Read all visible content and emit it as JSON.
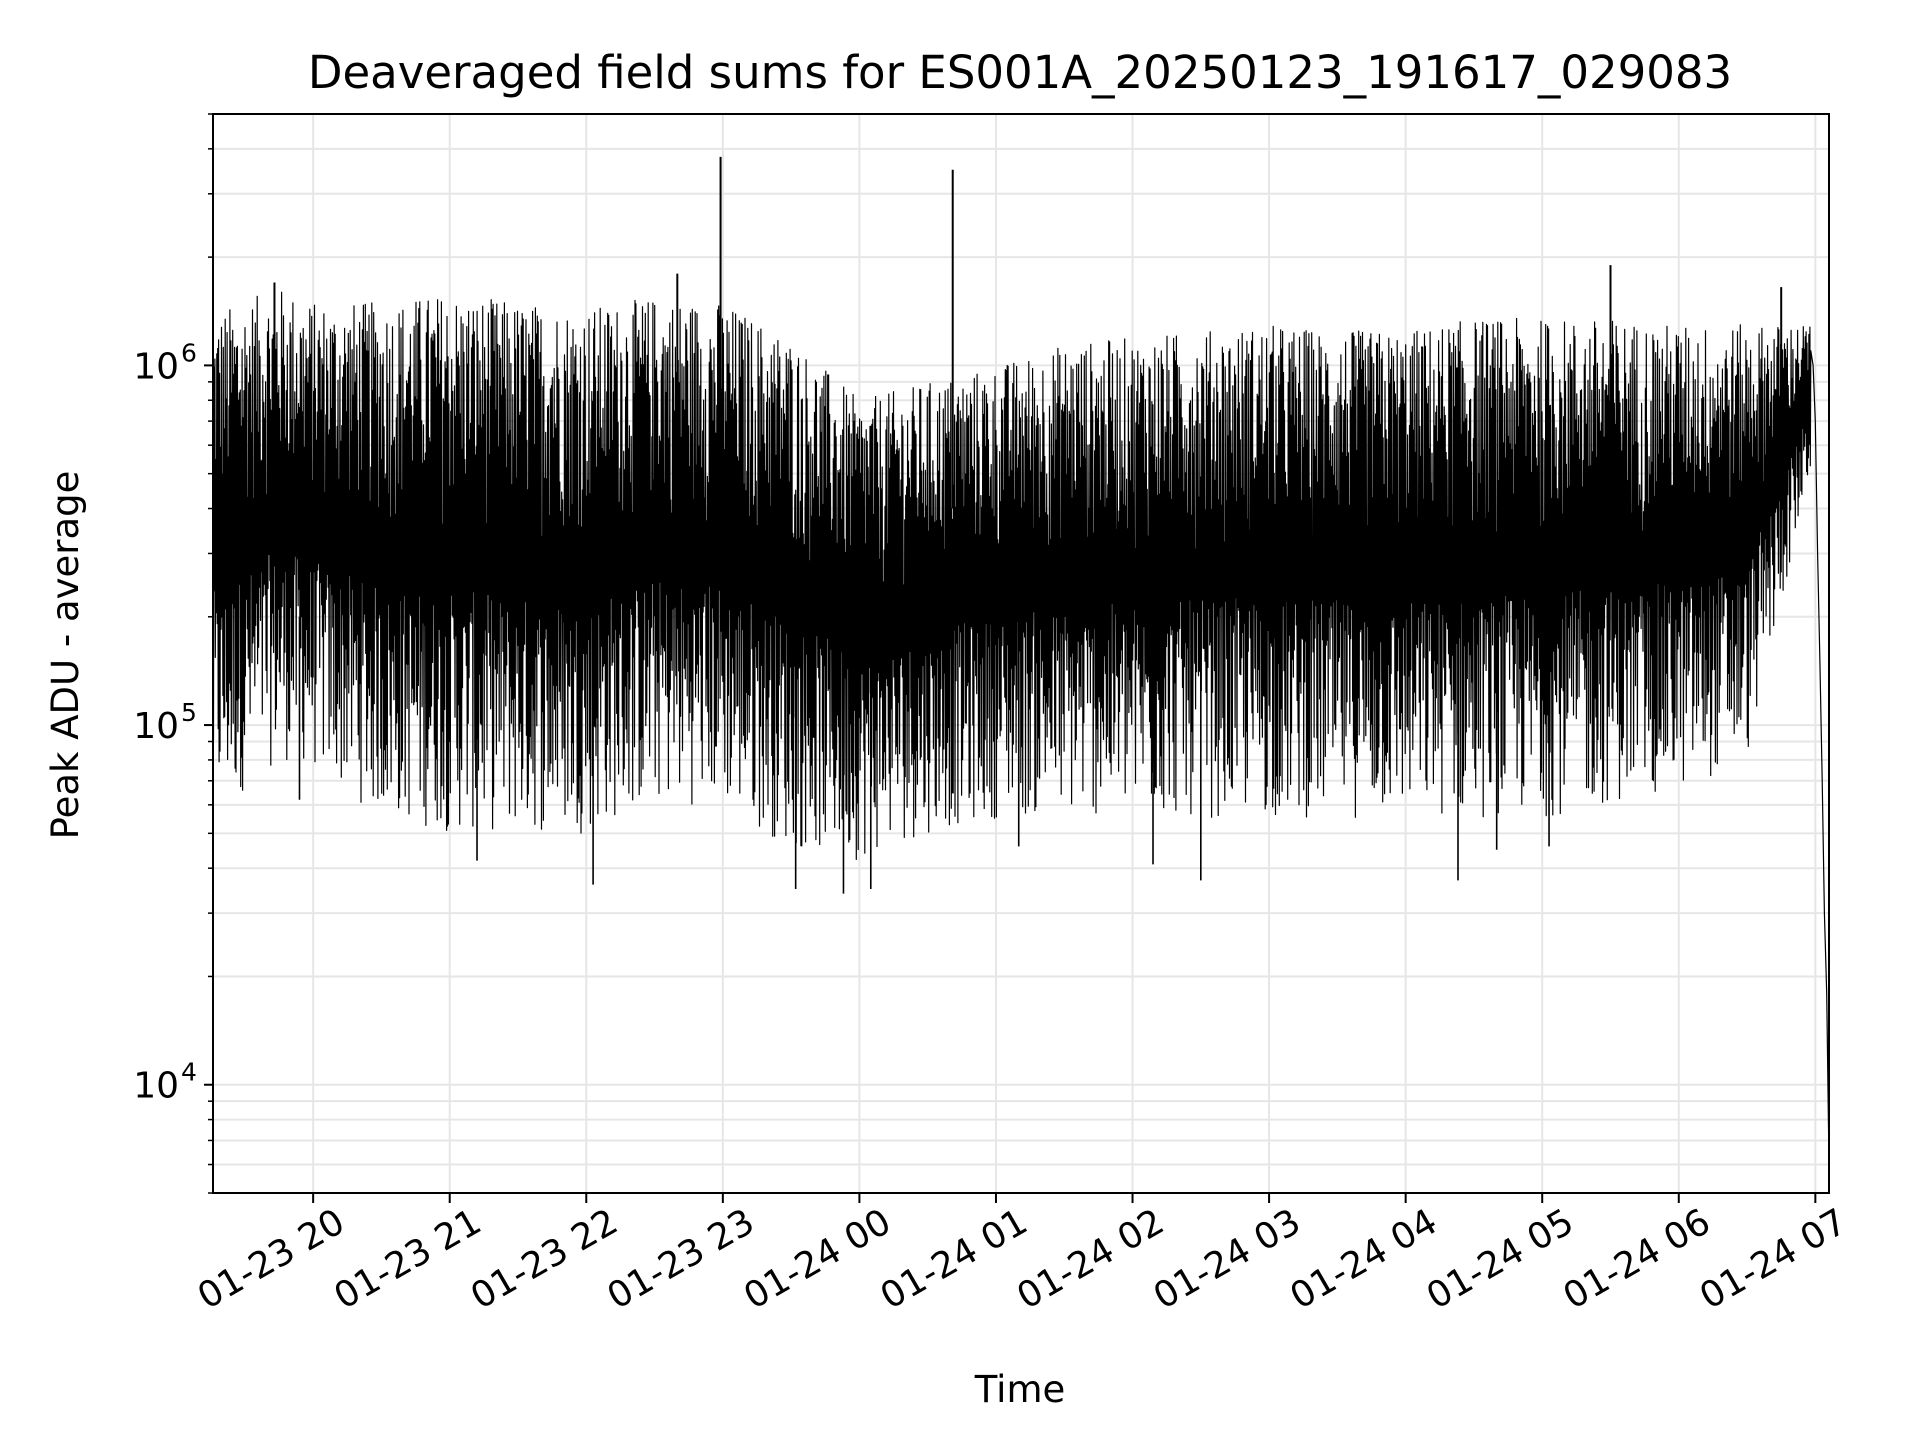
{
  "chart_data": {
    "type": "line",
    "title": "Deaveraged field sums for ES001A_20250123_191617_029083",
    "xlabel": "Time",
    "ylabel": "Peak ADU - average",
    "y_scale": "log",
    "ylim": [
      5000,
      5000000
    ],
    "xlim": [
      "2025-01-23 19:16",
      "2025-01-24 07:06"
    ],
    "grid": true,
    "line_color": "#000000",
    "x_ticks": [
      {
        "value": "2025-01-23 20:00",
        "label": "01-23 20"
      },
      {
        "value": "2025-01-23 21:00",
        "label": "01-23 21"
      },
      {
        "value": "2025-01-23 22:00",
        "label": "01-23 22"
      },
      {
        "value": "2025-01-23 23:00",
        "label": "01-23 23"
      },
      {
        "value": "2025-01-24 00:00",
        "label": "01-24 00"
      },
      {
        "value": "2025-01-24 01:00",
        "label": "01-24 01"
      },
      {
        "value": "2025-01-24 02:00",
        "label": "01-24 02"
      },
      {
        "value": "2025-01-24 03:00",
        "label": "01-24 03"
      },
      {
        "value": "2025-01-24 04:00",
        "label": "01-24 04"
      },
      {
        "value": "2025-01-24 05:00",
        "label": "01-24 05"
      },
      {
        "value": "2025-01-24 06:00",
        "label": "01-24 06"
      },
      {
        "value": "2025-01-24 07:00",
        "label": "01-24 07"
      }
    ],
    "y_ticks": [
      {
        "value": 10000,
        "base": "10",
        "exp": "4"
      },
      {
        "value": 100000,
        "base": "10",
        "exp": "5"
      },
      {
        "value": 1000000,
        "base": "10",
        "exp": "6"
      }
    ],
    "envelope": [
      {
        "t": "2025-01-23 19:16",
        "low": 55000,
        "high": 1400000
      },
      {
        "t": "2025-01-23 19:45",
        "low": 80000,
        "high": 1650000
      },
      {
        "t": "2025-01-23 20:00",
        "low": 75000,
        "high": 1500000
      },
      {
        "t": "2025-01-23 20:30",
        "low": 55000,
        "high": 1500000
      },
      {
        "t": "2025-01-23 21:00",
        "low": 50000,
        "high": 1600000
      },
      {
        "t": "2025-01-23 21:30",
        "low": 50000,
        "high": 1500000
      },
      {
        "t": "2025-01-23 22:00",
        "low": 50000,
        "high": 1450000
      },
      {
        "t": "2025-01-23 22:30",
        "low": 60000,
        "high": 1550000
      },
      {
        "t": "2025-01-23 23:00",
        "low": 60000,
        "high": 1500000
      },
      {
        "t": "2025-01-23 23:30",
        "low": 45000,
        "high": 1200000
      },
      {
        "t": "2025-01-24 00:00",
        "low": 42000,
        "high": 800000
      },
      {
        "t": "2025-01-24 00:30",
        "low": 50000,
        "high": 900000
      },
      {
        "t": "2025-01-24 01:00",
        "low": 55000,
        "high": 1000000
      },
      {
        "t": "2025-01-24 01:30",
        "low": 55000,
        "high": 1150000
      },
      {
        "t": "2025-01-24 02:00",
        "low": 55000,
        "high": 1200000
      },
      {
        "t": "2025-01-24 02:30",
        "low": 55000,
        "high": 1250000
      },
      {
        "t": "2025-01-24 03:00",
        "low": 55000,
        "high": 1300000
      },
      {
        "t": "2025-01-24 03:30",
        "low": 55000,
        "high": 1250000
      },
      {
        "t": "2025-01-24 04:00",
        "low": 55000,
        "high": 1250000
      },
      {
        "t": "2025-01-24 04:30",
        "low": 55000,
        "high": 1350000
      },
      {
        "t": "2025-01-24 05:00",
        "low": 55000,
        "high": 1350000
      },
      {
        "t": "2025-01-24 05:30",
        "low": 60000,
        "high": 1350000
      },
      {
        "t": "2025-01-24 06:00",
        "low": 65000,
        "high": 1300000
      },
      {
        "t": "2025-01-24 06:30",
        "low": 80000,
        "high": 1300000
      },
      {
        "t": "2025-01-24 06:58",
        "low": 500000,
        "high": 1300000
      }
    ],
    "spikes": [
      {
        "t": "2025-01-23 19:43",
        "value": 1700000
      },
      {
        "t": "2025-01-23 22:40",
        "value": 1800000
      },
      {
        "t": "2025-01-23 22:59",
        "value": 3800000
      },
      {
        "t": "2025-01-24 00:41",
        "value": 3500000
      },
      {
        "t": "2025-01-24 05:30",
        "value": 1900000
      },
      {
        "t": "2025-01-24 06:45",
        "value": 1650000
      }
    ],
    "dips": [
      {
        "t": "2025-01-23 19:54",
        "value": 62000
      },
      {
        "t": "2025-01-23 21:12",
        "value": 42000
      },
      {
        "t": "2025-01-23 22:03",
        "value": 36000
      },
      {
        "t": "2025-01-23 23:32",
        "value": 35000
      },
      {
        "t": "2025-01-23 23:53",
        "value": 34000
      },
      {
        "t": "2025-01-24 00:05",
        "value": 35000
      },
      {
        "t": "2025-01-24 01:10",
        "value": 46000
      },
      {
        "t": "2025-01-24 02:09",
        "value": 41000
      },
      {
        "t": "2025-01-24 02:30",
        "value": 37000
      },
      {
        "t": "2025-01-24 04:23",
        "value": 37000
      },
      {
        "t": "2025-01-24 04:40",
        "value": 45000
      },
      {
        "t": "2025-01-24 05:03",
        "value": 46000
      }
    ],
    "tail": [
      {
        "t": "2025-01-24 06:59",
        "value": 1000000
      },
      {
        "t": "2025-01-24 07:00",
        "value": 700000
      },
      {
        "t": "2025-01-24 07:01",
        "value": 300000
      },
      {
        "t": "2025-01-24 07:02",
        "value": 150000
      },
      {
        "t": "2025-01-24 07:03",
        "value": 70000
      },
      {
        "t": "2025-01-24 07:04",
        "value": 30000
      },
      {
        "t": "2025-01-24 07:05",
        "value": 18000
      },
      {
        "t": "2025-01-24 07:06",
        "value": 6000
      }
    ]
  }
}
